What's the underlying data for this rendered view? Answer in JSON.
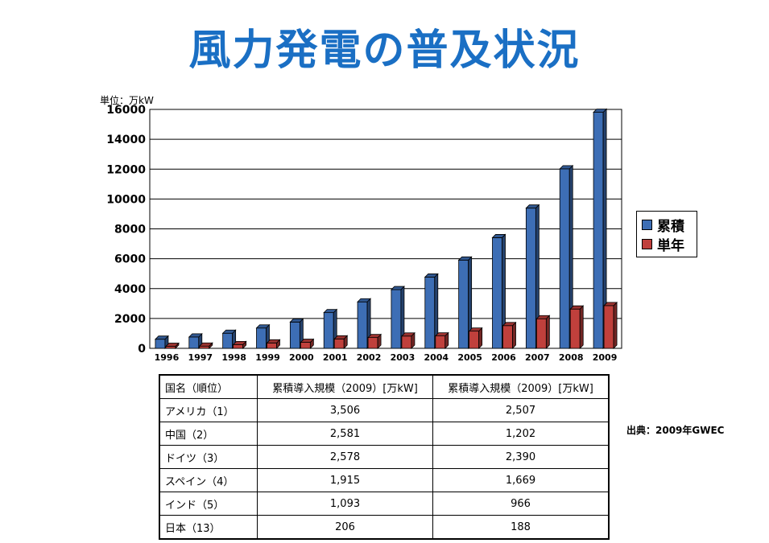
{
  "page": {
    "title": "風力発電の普及状況",
    "unit_label": "単位：万kW",
    "source": "出典：2009年GWEC"
  },
  "chart_data": {
    "type": "bar",
    "categories": [
      "1996",
      "1997",
      "1998",
      "1999",
      "2000",
      "2001",
      "2002",
      "2003",
      "2004",
      "2005",
      "2006",
      "2007",
      "2008",
      "2009"
    ],
    "series": [
      {
        "name": "累積",
        "color": "#3d6eb5",
        "values": [
          610,
          760,
          1010,
          1360,
          1760,
          2390,
          3110,
          3930,
          4770,
          5910,
          7410,
          9390,
          12020,
          15810
        ]
      },
      {
        "name": "単年",
        "color": "#c0403c",
        "values": [
          130,
          150,
          250,
          360,
          400,
          630,
          720,
          820,
          830,
          1150,
          1520,
          1980,
          2630,
          2860
        ]
      }
    ],
    "ylim": [
      0,
      16000
    ],
    "yticks": [
      0,
      2000,
      4000,
      6000,
      8000,
      10000,
      12000,
      14000,
      16000
    ],
    "grid": true,
    "legend_position": "right"
  },
  "table": {
    "headers": [
      "国名（順位）",
      "累積導入規模（2009）[万kW]",
      "累積導入規模（2009）[万kW]"
    ],
    "rows": [
      [
        "アメリカ（1）",
        "3,506",
        "2,507"
      ],
      [
        "中国（2）",
        "2,581",
        "1,202"
      ],
      [
        "ドイツ（3）",
        "2,578",
        "2,390"
      ],
      [
        "スペイン（4）",
        "1,915",
        "1,669"
      ],
      [
        "インド（5）",
        "1,093",
        "966"
      ],
      [
        "日本（13）",
        "206",
        "188"
      ]
    ]
  }
}
